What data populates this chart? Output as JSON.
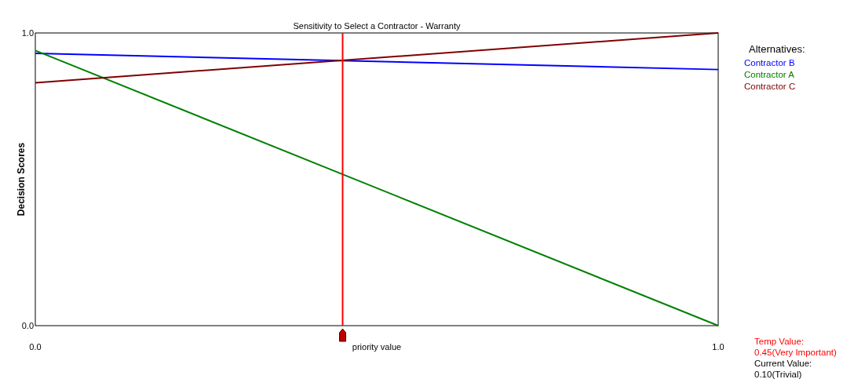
{
  "chart_data": {
    "type": "line",
    "title": "Sensitivity to Select a Contractor - Warranty",
    "xlabel": "priority value",
    "ylabel": "Decision Scores",
    "legend_title": "Alternatives:",
    "legend": "right",
    "grid": false,
    "marker": "none",
    "x": [
      0,
      1
    ],
    "xlim": [
      0,
      1
    ],
    "ylim": [
      0,
      1
    ],
    "xticks": [
      {
        "value": 0,
        "label": "0.0"
      },
      {
        "value": 1,
        "label": "1.0"
      }
    ],
    "yticks": [
      {
        "value": 0,
        "label": "0.0"
      },
      {
        "value": 1,
        "label": "1.0"
      }
    ],
    "series": [
      {
        "name": "Contractor B",
        "color": "#0000ff",
        "values": [
          0.93,
          0.875
        ]
      },
      {
        "name": "Contractor A",
        "color": "#008000",
        "values": [
          0.94,
          0
        ]
      },
      {
        "name": "Contractor C",
        "color": "#800000",
        "values": [
          0.83,
          1.0
        ]
      }
    ],
    "ref_lines": [
      {
        "axis": "x",
        "value": 0.45,
        "color": "#ff0000"
      }
    ],
    "annotations": [
      "Temp Value:",
      "0.45(Very Important)",
      "Current Value:",
      "0.10(Trivial)"
    ]
  }
}
